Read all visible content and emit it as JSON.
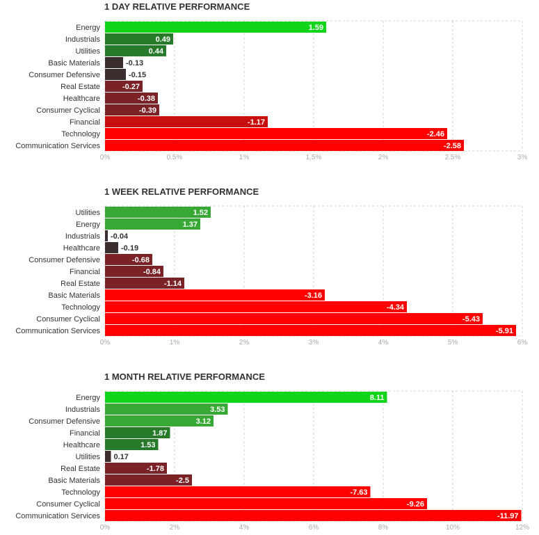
{
  "chart_data": [
    {
      "type": "bar",
      "orientation": "horizontal",
      "title": "1 DAY RELATIVE PERFORMANCE",
      "categories": [
        "Energy",
        "Industrials",
        "Utilities",
        "Basic Materials",
        "Consumer Defensive",
        "Real Estate",
        "Healthcare",
        "Consumer Cyclical",
        "Financial",
        "Technology",
        "Communication Services"
      ],
      "values": [
        1.59,
        0.49,
        0.44,
        -0.13,
        -0.15,
        -0.27,
        -0.38,
        -0.39,
        -1.17,
        -2.46,
        -2.58
      ],
      "value_labels": [
        "1.59",
        "0.49",
        "0.44",
        "-0.13",
        "-0.15",
        "-0.27",
        "-0.38",
        "-0.39",
        "-1.17",
        "-2.46",
        "-2.58"
      ],
      "xlim": [
        0,
        3
      ],
      "ticks": [
        "0%",
        "0.5%",
        "1%",
        "1.5%",
        "2%",
        "2.5%",
        "3%"
      ],
      "grid": true
    },
    {
      "type": "bar",
      "orientation": "horizontal",
      "title": "1 WEEK RELATIVE PERFORMANCE",
      "categories": [
        "Utilities",
        "Energy",
        "Industrials",
        "Healthcare",
        "Consumer Defensive",
        "Financial",
        "Real Estate",
        "Basic Materials",
        "Technology",
        "Consumer Cyclical",
        "Communication Services"
      ],
      "values": [
        1.52,
        1.37,
        -0.04,
        -0.19,
        -0.68,
        -0.84,
        -1.14,
        -3.16,
        -4.34,
        -5.43,
        -5.91
      ],
      "value_labels": [
        "1.52",
        "1.37",
        "-0.04",
        "-0.19",
        "-0.68",
        "-0.84",
        "-1.14",
        "-3.16",
        "-4.34",
        "-5.43",
        "-5.91"
      ],
      "xlim": [
        0,
        6
      ],
      "ticks": [
        "0%",
        "1%",
        "2%",
        "3%",
        "4%",
        "5%",
        "6%"
      ],
      "grid": true
    },
    {
      "type": "bar",
      "orientation": "horizontal",
      "title": "1 MONTH RELATIVE PERFORMANCE",
      "categories": [
        "Energy",
        "Industrials",
        "Consumer Defensive",
        "Financial",
        "Healthcare",
        "Utilities",
        "Real Estate",
        "Basic Materials",
        "Technology",
        "Consumer Cyclical",
        "Communication Services"
      ],
      "values": [
        8.11,
        3.53,
        3.12,
        1.87,
        1.53,
        0.17,
        -1.78,
        -2.5,
        -7.63,
        -9.26,
        -11.97
      ],
      "value_labels": [
        "8.11",
        "3.53",
        "3.12",
        "1.87",
        "1.53",
        "0.17",
        "-1.78",
        "-2.5",
        "-7.63",
        "-9.26",
        "-11.97"
      ],
      "xlim": [
        0,
        12
      ],
      "ticks": [
        "0%",
        "2%",
        "4%",
        "6%",
        "8%",
        "10%",
        "12%"
      ],
      "grid": true
    }
  ],
  "colors": {
    "strong_positive": "#12d41a",
    "positive": "#38a835",
    "mild_positive": "#267a2a",
    "near_zero": "#3a2e2e",
    "mild_negative": "#7a2226",
    "negative": "#c80f0f",
    "strong_negative": "#ff0000"
  }
}
